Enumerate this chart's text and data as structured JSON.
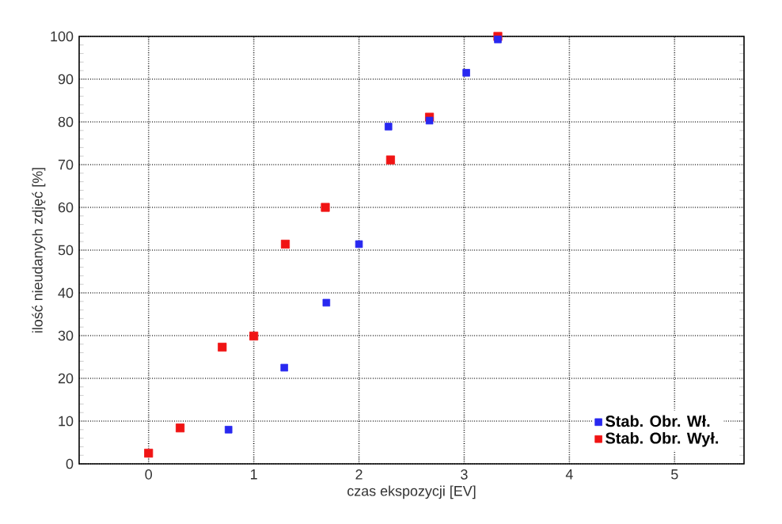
{
  "chart_data": {
    "type": "scatter",
    "xlabel": "czas ekspozycji [EV]",
    "ylabel": "ilość nieudanych zdjęć [%]",
    "xlim": [
      -0.66,
      5.66
    ],
    "ylim": [
      0,
      100
    ],
    "xticks": [
      0,
      1,
      2,
      3,
      4,
      5
    ],
    "yticks": [
      0,
      10,
      20,
      30,
      40,
      50,
      60,
      70,
      80,
      90,
      100
    ],
    "grid": true,
    "legend": "bottom right",
    "marker": "square",
    "series": [
      {
        "name": "Stab. Obr. Wł.",
        "color": "#2828f0",
        "x": [
          0.76,
          1.29,
          1.69,
          2.0,
          2.28,
          2.67,
          3.02,
          3.32
        ],
        "values": [
          8.0,
          22.5,
          37.7,
          51.4,
          78.9,
          80.3,
          91.5,
          99.3
        ]
      },
      {
        "name": "Stab. Obr. Wył.",
        "color": "#f01414",
        "x": [
          0,
          0.3,
          0.7,
          1.0,
          1.3,
          1.68,
          2.3,
          2.67,
          3.32
        ],
        "values": [
          2.5,
          8.4,
          27.3,
          29.9,
          51.4,
          60.0,
          71.1,
          81.1,
          100
        ]
      }
    ]
  }
}
